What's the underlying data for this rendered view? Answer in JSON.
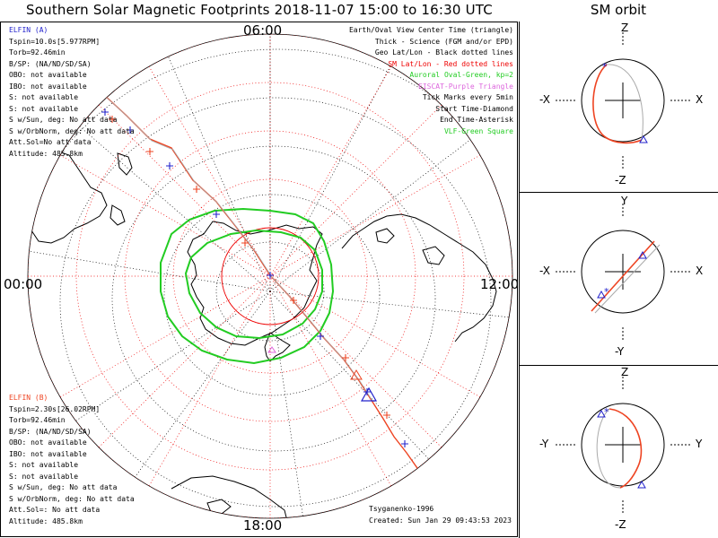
{
  "title": "Southern Solar Magnetic Footprints 2018-11-07 15:00 to 16:30 UTC",
  "sm_orbit_title": "SM orbit",
  "hour_labels": {
    "top": "06:00",
    "left": "00:00",
    "right": "12:00",
    "bottom": "18:00"
  },
  "elfin_a": {
    "name": "ELFIN (A)",
    "color": "#2222cc",
    "lines": [
      "Tspin=10.0s[5.977RPM]",
      "Torb=92.46min",
      "B/SP: (NA/ND/SD/SA)",
      "OBO: not available",
      "IBO: not available",
      "S: not available",
      "S: not available",
      "S w/Sun, deg: No att data",
      "S w/OrbNorm, deg: No att data",
      "Att.Sol=No att data",
      "Altitude: 485.8km"
    ]
  },
  "elfin_b": {
    "name": "ELFIN (B)",
    "color": "#ee4422",
    "lines": [
      "Tspin=2.30s[26.02RPM]",
      "Torb=92.46min",
      "B/SP: (NA/ND/SD/SA)",
      "OBO: not available",
      "IBO: not available",
      "S: not available",
      "S: not available",
      "S w/Sun, deg: No att data",
      "S w/OrbNorm, deg: No att data",
      "Att.Sol=: No att data",
      "Altitude: 485.8km"
    ]
  },
  "legend": [
    {
      "text": "Earth/Oval View Center Time (triangle)",
      "color": "#000000"
    },
    {
      "text": "Thick - Science (FGM and/or EPD)",
      "color": "#000000"
    },
    {
      "text": "Geo Lat/Lon - Black dotted lines",
      "color": "#000000"
    },
    {
      "text": "SM Lat/Lon - Red dotted lines",
      "color": "#ee0000"
    },
    {
      "text": "Auroral Oval-Green, kp=2",
      "color": "#22cc22"
    },
    {
      "text": "EISCAT-Purple Triangle",
      "color": "#dd66dd"
    },
    {
      "text": "Tick Marks every 5min",
      "color": "#000000"
    },
    {
      "text": "Start Time-Diamond",
      "color": "#000000"
    },
    {
      "text": "End Time-Asterisk",
      "color": "#000000"
    },
    {
      "text": "VLF-Green Square",
      "color": "#22cc22"
    }
  ],
  "credits": [
    "Tsyganenko-1996",
    "Created: Sun Jan 29 09:43:53 2023"
  ],
  "orbit_panels": [
    {
      "top": "Z",
      "bottom": "-Z",
      "left": "-X",
      "right": "X"
    },
    {
      "top": "Y",
      "bottom": "-Y",
      "left": "-X",
      "right": "X"
    },
    {
      "top": "Z",
      "bottom": "-Z",
      "left": "-Y",
      "right": "Y"
    }
  ],
  "colors": {
    "track": "#ee4422",
    "tick": "#2222cc",
    "oval": "#22cc22",
    "sm_grid": "#ee0000",
    "geo_grid": "#000000",
    "orbit_gray": "#aaaaaa"
  }
}
